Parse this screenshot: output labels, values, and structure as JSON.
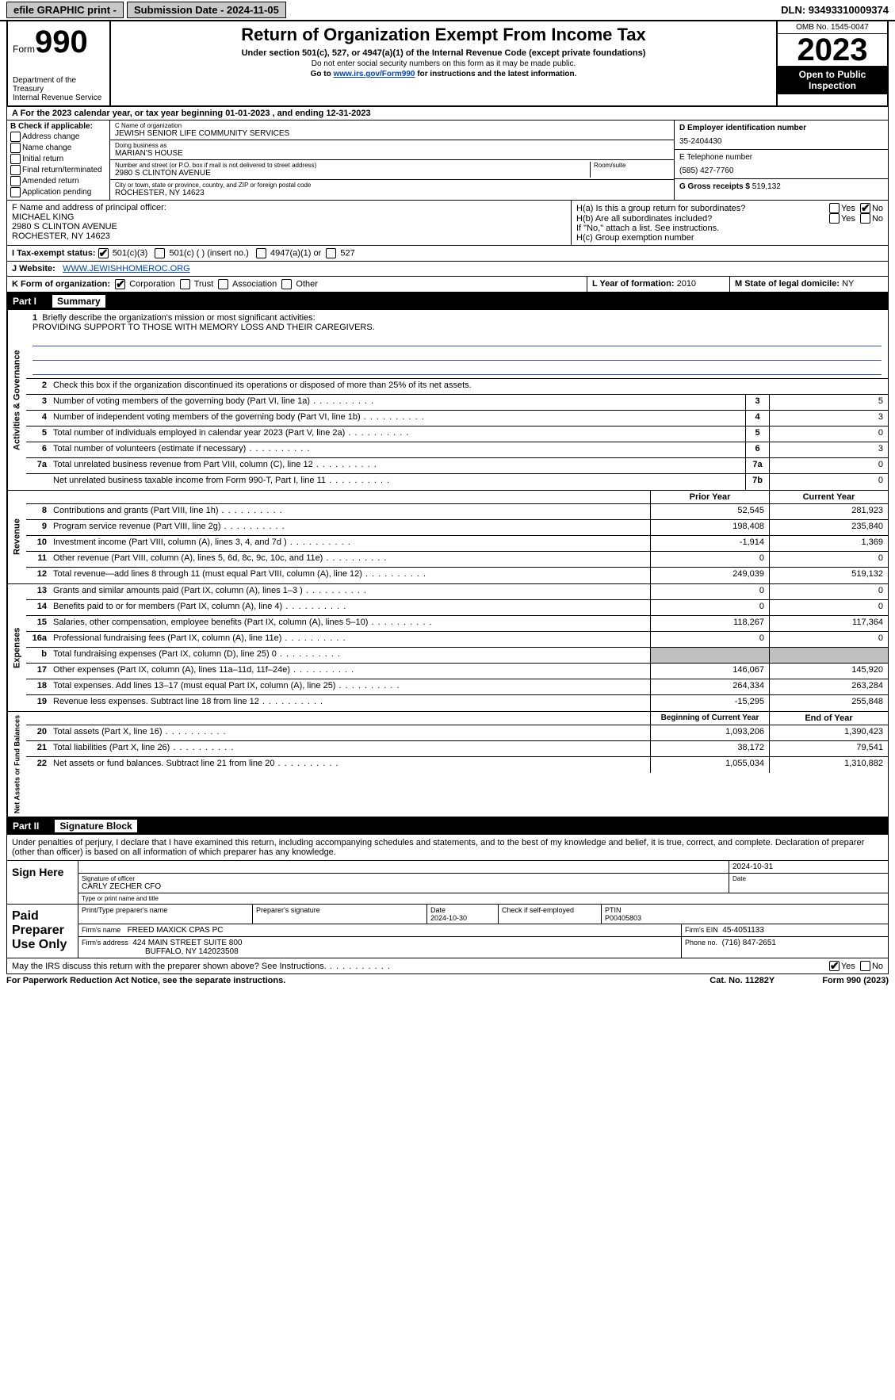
{
  "topbar": {
    "efile": "efile GRAPHIC print -",
    "submission_date_label": "Submission Date - 2024-11-05",
    "dln": "DLN: 93493310009374"
  },
  "header": {
    "form_word": "Form",
    "form_num": "990",
    "dept": "Department of the Treasury",
    "irs": "Internal Revenue Service",
    "title": "Return of Organization Exempt From Income Tax",
    "sub": "Under section 501(c), 527, or 4947(a)(1) of the Internal Revenue Code (except private foundations)",
    "ssn_note": "Do not enter social security numbers on this form as it may be made public.",
    "goto_pre": "Go to ",
    "goto_link": "www.irs.gov/Form990",
    "goto_post": " for instructions and the latest information.",
    "omb": "OMB No. 1545-0047",
    "year": "2023",
    "open": "Open to Public Inspection"
  },
  "line_a": "A For the 2023 calendar year, or tax year beginning 01-01-2023   , and ending 12-31-2023",
  "box_b": {
    "title": "B Check if applicable:",
    "items": [
      "Address change",
      "Name change",
      "Initial return",
      "Final return/terminated",
      "Amended return",
      "Application pending"
    ]
  },
  "box_c": {
    "name_label": "C Name of organization",
    "name": "JEWISH SENIOR LIFE COMMUNITY SERVICES",
    "dba_label": "Doing business as",
    "dba": "MARIAN'S HOUSE",
    "addr_label": "Number and street (or P.O. box if mail is not delivered to street address)",
    "room_label": "Room/suite",
    "addr": "2980 S CLINTON AVENUE",
    "city_label": "City or town, state or province, country, and ZIP or foreign postal code",
    "city": "ROCHESTER, NY  14623"
  },
  "box_d": {
    "ein_label": "D Employer identification number",
    "ein": "35-2404430",
    "phone_label": "E Telephone number",
    "phone": "(585) 427-7760",
    "gross_label": "G Gross receipts $",
    "gross": "519,132"
  },
  "box_f": {
    "label": "F  Name and address of principal officer:",
    "name": "MICHAEL KING",
    "addr1": "2980 S CLINTON AVENUE",
    "addr2": "ROCHESTER, NY  14623"
  },
  "box_h": {
    "ha": "H(a)  Is this a group return for subordinates?",
    "hb": "H(b)  Are all subordinates included?",
    "hb_note": "If \"No,\" attach a list. See instructions.",
    "hc": "H(c)  Group exemption number",
    "yes": "Yes",
    "no": "No"
  },
  "box_i": {
    "label": "I    Tax-exempt status:",
    "opt1": "501(c)(3)",
    "opt2": "501(c) (  ) (insert no.)",
    "opt3": "4947(a)(1) or",
    "opt4": "527"
  },
  "box_j": {
    "label": "J   Website:",
    "value": "WWW.JEWISHHOMEROC.ORG"
  },
  "box_k": {
    "label": "K Form of organization:",
    "opts": [
      "Corporation",
      "Trust",
      "Association",
      "Other"
    ]
  },
  "box_l": {
    "label": "L Year of formation:",
    "value": "2010"
  },
  "box_m": {
    "label": "M State of legal domicile:",
    "value": "NY"
  },
  "parts": {
    "p1": "Part I",
    "p1_title": "Summary",
    "p2": "Part II",
    "p2_title": "Signature Block"
  },
  "side_labels": {
    "gov": "Activities & Governance",
    "rev": "Revenue",
    "exp": "Expenses",
    "net": "Net Assets or Fund Balances"
  },
  "summary": {
    "q1": "Briefly describe the organization's mission or most significant activities:",
    "q1_ans": "PROVIDING SUPPORT TO THOSE WITH MEMORY LOSS AND THEIR CAREGIVERS.",
    "q2": "Check this box       if the organization discontinued its operations or disposed of more than 25% of its net assets.",
    "rows_gov": [
      {
        "n": "3",
        "d": "Number of voting members of the governing body (Part VI, line 1a)",
        "bl": "3",
        "v": "5"
      },
      {
        "n": "4",
        "d": "Number of independent voting members of the governing body (Part VI, line 1b)",
        "bl": "4",
        "v": "3"
      },
      {
        "n": "5",
        "d": "Total number of individuals employed in calendar year 2023 (Part V, line 2a)",
        "bl": "5",
        "v": "0"
      },
      {
        "n": "6",
        "d": "Total number of volunteers (estimate if necessary)",
        "bl": "6",
        "v": "3"
      },
      {
        "n": "7a",
        "d": "Total unrelated business revenue from Part VIII, column (C), line 12",
        "bl": "7a",
        "v": "0"
      },
      {
        "n": "",
        "d": "Net unrelated business taxable income from Form 990-T, Part I, line 11",
        "bl": "7b",
        "v": "0"
      }
    ],
    "col_headers": {
      "prior": "Prior Year",
      "current": "Current Year"
    },
    "rows_rev": [
      {
        "n": "8",
        "d": "Contributions and grants (Part VIII, line 1h)",
        "p": "52,545",
        "c": "281,923"
      },
      {
        "n": "9",
        "d": "Program service revenue (Part VIII, line 2g)",
        "p": "198,408",
        "c": "235,840"
      },
      {
        "n": "10",
        "d": "Investment income (Part VIII, column (A), lines 3, 4, and 7d )",
        "p": "-1,914",
        "c": "1,369"
      },
      {
        "n": "11",
        "d": "Other revenue (Part VIII, column (A), lines 5, 6d, 8c, 9c, 10c, and 11e)",
        "p": "0",
        "c": "0"
      },
      {
        "n": "12",
        "d": "Total revenue—add lines 8 through 11 (must equal Part VIII, column (A), line 12)",
        "p": "249,039",
        "c": "519,132"
      }
    ],
    "rows_exp": [
      {
        "n": "13",
        "d": "Grants and similar amounts paid (Part IX, column (A), lines 1–3 )",
        "p": "0",
        "c": "0"
      },
      {
        "n": "14",
        "d": "Benefits paid to or for members (Part IX, column (A), line 4)",
        "p": "0",
        "c": "0"
      },
      {
        "n": "15",
        "d": "Salaries, other compensation, employee benefits (Part IX, column (A), lines 5–10)",
        "p": "118,267",
        "c": "117,364"
      },
      {
        "n": "16a",
        "d": "Professional fundraising fees (Part IX, column (A), line 11e)",
        "p": "0",
        "c": "0"
      },
      {
        "n": "b",
        "d": "Total fundraising expenses (Part IX, column (D), line 25) 0",
        "p": "",
        "c": "",
        "grey": true
      },
      {
        "n": "17",
        "d": "Other expenses (Part IX, column (A), lines 11a–11d, 11f–24e)",
        "p": "146,067",
        "c": "145,920"
      },
      {
        "n": "18",
        "d": "Total expenses. Add lines 13–17 (must equal Part IX, column (A), line 25)",
        "p": "264,334",
        "c": "263,284"
      },
      {
        "n": "19",
        "d": "Revenue less expenses. Subtract line 18 from line 12",
        "p": "-15,295",
        "c": "255,848"
      }
    ],
    "col_headers2": {
      "begin": "Beginning of Current Year",
      "end": "End of Year"
    },
    "rows_net": [
      {
        "n": "20",
        "d": "Total assets (Part X, line 16)",
        "p": "1,093,206",
        "c": "1,390,423"
      },
      {
        "n": "21",
        "d": "Total liabilities (Part X, line 26)",
        "p": "38,172",
        "c": "79,541"
      },
      {
        "n": "22",
        "d": "Net assets or fund balances. Subtract line 21 from line 20",
        "p": "1,055,034",
        "c": "1,310,882"
      }
    ]
  },
  "sig": {
    "penalty": "Under penalties of perjury, I declare that I have examined this return, including accompanying schedules and statements, and to the best of my knowledge and belief, it is true, correct, and complete. Declaration of preparer (other than officer) is based on all information of which preparer has any knowledge.",
    "sign_here": "Sign Here",
    "sig_officer_label": "Signature of officer",
    "officer_name": "CARLY ZECHER  CFO",
    "officer_name_label": "Type or print name and title",
    "date_label": "Date",
    "sig_date": "2024-10-31",
    "paid_label": "Paid Preparer Use Only",
    "preparer_name_label": "Print/Type preparer's name",
    "preparer_sig_label": "Preparer's signature",
    "prep_date_label": "Date",
    "prep_date": "2024-10-30",
    "check_if": "Check        if self-employed",
    "ptin_label": "PTIN",
    "ptin": "P00405803",
    "firm_name_label": "Firm's name",
    "firm_name": "FREED MAXICK CPAS PC",
    "firm_ein_label": "Firm's EIN",
    "firm_ein": "45-4051133",
    "firm_addr_label": "Firm's address",
    "firm_addr1": "424 MAIN STREET SUITE 800",
    "firm_addr2": "BUFFALO, NY  142023508",
    "phone_label": "Phone no.",
    "phone": "(716) 847-2651",
    "discuss": "May the IRS discuss this return with the preparer shown above? See Instructions."
  },
  "footer": {
    "paperwork": "For Paperwork Reduction Act Notice, see the separate instructions.",
    "cat": "Cat. No. 11282Y",
    "form": "Form 990 (2023)"
  },
  "colors": {
    "link": "#0645ad",
    "mission_underline": "#3a56a0",
    "grey_cell": "#c0c0c0",
    "button_bg": "#c8c8c8"
  }
}
